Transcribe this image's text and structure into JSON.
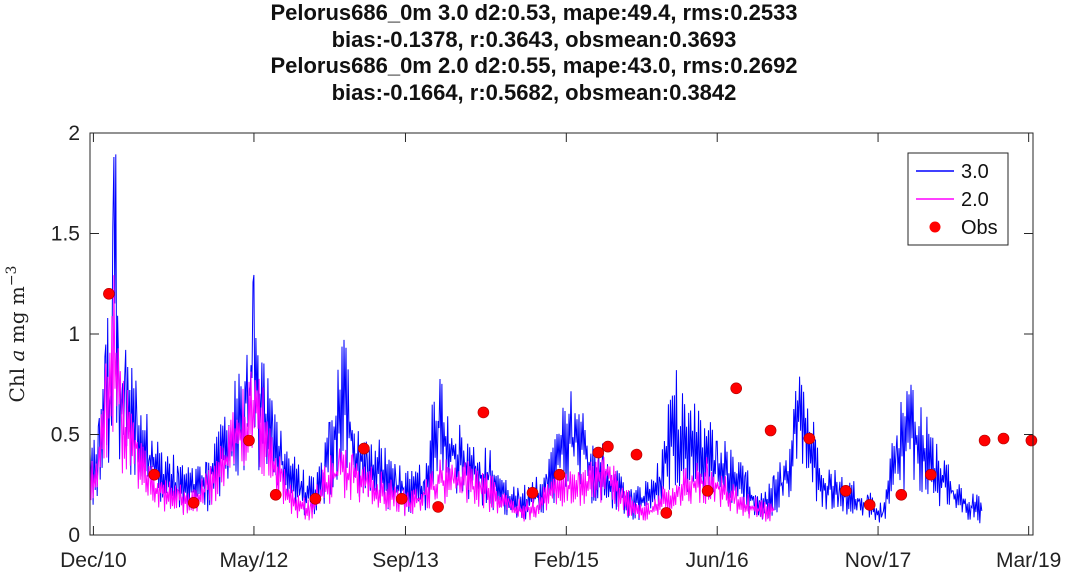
{
  "chart_data": {
    "type": "line",
    "title_lines": [
      "Pelorus686_0m  3.0 d2:0.53, mape:49.4, rms:0.2533",
      "bias:-0.1378, r:0.3643, obsmean:0.3693",
      "Pelorus686_0m 2.0 d2:0.55, mape:43.0, rms:0.2692",
      "bias:-0.1664, r:0.5682, obsmean:0.3842"
    ],
    "ylabel": "Chl a mg m-3",
    "ylabel_parts": {
      "prefix": "Chl",
      "italic": "a",
      "unit": "mg m",
      "exponent": "−3"
    },
    "ylim": [
      0,
      2
    ],
    "xlim": [
      "2010-11-20",
      "2019-03-15"
    ],
    "y_ticks": [
      {
        "value": 0,
        "label": "0"
      },
      {
        "value": 0.5,
        "label": "0.5"
      },
      {
        "value": 1,
        "label": "1"
      },
      {
        "value": 1.5,
        "label": "1.5"
      },
      {
        "value": 2,
        "label": "2"
      }
    ],
    "x_ticks": [
      {
        "date": "2010-12-01",
        "label": "Dec/10"
      },
      {
        "date": "2012-05-01",
        "label": "May/12"
      },
      {
        "date": "2013-09-01",
        "label": "Sep/13"
      },
      {
        "date": "2015-02-01",
        "label": "Feb/15"
      },
      {
        "date": "2016-06-01",
        "label": "Jun/16"
      },
      {
        "date": "2017-11-01",
        "label": "Nov/17"
      },
      {
        "date": "2019-03-01",
        "label": "Mar/19"
      }
    ],
    "grid": false,
    "legend_position": "top-right",
    "series": [
      {
        "name": "3.0",
        "style": "line",
        "color": "#0000ff",
        "points": [
          [
            "2010-11-20",
            0.3
          ],
          [
            "2010-12-20",
            0.4
          ],
          [
            "2011-01-10",
            0.85
          ],
          [
            "2011-01-25",
            0.55
          ],
          [
            "2011-02-05",
            1.63
          ],
          [
            "2011-02-20",
            0.7
          ],
          [
            "2011-03-15",
            0.6
          ],
          [
            "2011-04-20",
            0.55
          ],
          [
            "2011-06-01",
            0.35
          ],
          [
            "2011-07-15",
            0.3
          ],
          [
            "2011-09-01",
            0.25
          ],
          [
            "2011-10-15",
            0.22
          ],
          [
            "2011-12-01",
            0.25
          ],
          [
            "2012-01-15",
            0.4
          ],
          [
            "2012-03-01",
            0.5
          ],
          [
            "2012-04-15",
            0.7
          ],
          [
            "2012-05-01",
            0.93
          ],
          [
            "2012-05-20",
            0.6
          ],
          [
            "2012-07-01",
            0.45
          ],
          [
            "2012-08-15",
            0.3
          ],
          [
            "2012-10-01",
            0.22
          ],
          [
            "2012-11-15",
            0.18
          ],
          [
            "2013-01-01",
            0.4
          ],
          [
            "2013-02-15",
            0.7
          ],
          [
            "2013-03-20",
            0.4
          ],
          [
            "2013-05-01",
            0.35
          ],
          [
            "2013-06-15",
            0.3
          ],
          [
            "2013-08-01",
            0.25
          ],
          [
            "2013-09-15",
            0.2
          ],
          [
            "2013-11-01",
            0.25
          ],
          [
            "2013-12-15",
            0.55
          ],
          [
            "2014-01-15",
            0.45
          ],
          [
            "2014-03-01",
            0.35
          ],
          [
            "2014-04-15",
            0.3
          ],
          [
            "2014-06-01",
            0.28
          ],
          [
            "2014-07-15",
            0.2
          ],
          [
            "2014-09-01",
            0.15
          ],
          [
            "2014-10-15",
            0.18
          ],
          [
            "2014-12-01",
            0.25
          ],
          [
            "2015-01-15",
            0.4
          ],
          [
            "2015-03-01",
            0.5
          ],
          [
            "2015-04-15",
            0.35
          ],
          [
            "2015-06-01",
            0.3
          ],
          [
            "2015-07-15",
            0.22
          ],
          [
            "2015-09-01",
            0.15
          ],
          [
            "2015-10-15",
            0.18
          ],
          [
            "2015-12-01",
            0.25
          ],
          [
            "2016-01-15",
            0.55
          ],
          [
            "2016-03-01",
            0.45
          ],
          [
            "2016-04-15",
            0.4
          ],
          [
            "2016-06-01",
            0.35
          ],
          [
            "2016-07-15",
            0.28
          ],
          [
            "2016-09-01",
            0.22
          ],
          [
            "2016-10-15",
            0.15
          ],
          [
            "2016-12-01",
            0.2
          ],
          [
            "2017-01-15",
            0.3
          ],
          [
            "2017-02-15",
            0.66
          ],
          [
            "2017-04-01",
            0.4
          ],
          [
            "2017-05-15",
            0.25
          ],
          [
            "2017-07-01",
            0.2
          ],
          [
            "2017-08-15",
            0.18
          ],
          [
            "2017-10-01",
            0.15
          ],
          [
            "2017-11-15",
            0.1
          ],
          [
            "2018-01-01",
            0.4
          ],
          [
            "2018-02-15",
            0.55
          ],
          [
            "2018-04-01",
            0.4
          ],
          [
            "2018-05-15",
            0.3
          ],
          [
            "2018-07-01",
            0.2
          ],
          [
            "2018-08-15",
            0.15
          ],
          [
            "2018-10-01",
            0.12
          ]
        ]
      },
      {
        "name": "2.0",
        "style": "line",
        "color": "#ff00ff",
        "points": [
          [
            "2010-11-20",
            0.25
          ],
          [
            "2010-12-20",
            0.35
          ],
          [
            "2011-01-10",
            0.6
          ],
          [
            "2011-02-05",
            0.95
          ],
          [
            "2011-03-01",
            0.55
          ],
          [
            "2011-04-15",
            0.45
          ],
          [
            "2011-06-01",
            0.25
          ],
          [
            "2011-07-15",
            0.2
          ],
          [
            "2011-09-01",
            0.18
          ],
          [
            "2011-10-15",
            0.16
          ],
          [
            "2011-12-01",
            0.22
          ],
          [
            "2012-01-15",
            0.32
          ],
          [
            "2012-03-01",
            0.45
          ],
          [
            "2012-04-15",
            0.55
          ],
          [
            "2012-05-05",
            0.7
          ],
          [
            "2012-06-15",
            0.4
          ],
          [
            "2012-08-01",
            0.25
          ],
          [
            "2012-09-15",
            0.15
          ],
          [
            "2012-11-01",
            0.12
          ],
          [
            "2012-12-15",
            0.25
          ],
          [
            "2013-02-01",
            0.32
          ],
          [
            "2013-03-15",
            0.3
          ],
          [
            "2013-05-01",
            0.25
          ],
          [
            "2013-06-15",
            0.22
          ],
          [
            "2013-08-01",
            0.18
          ],
          [
            "2013-09-15",
            0.15
          ],
          [
            "2013-11-01",
            0.2
          ],
          [
            "2013-12-15",
            0.26
          ],
          [
            "2014-02-01",
            0.28
          ],
          [
            "2014-03-15",
            0.26
          ],
          [
            "2014-05-01",
            0.22
          ],
          [
            "2014-06-15",
            0.2
          ],
          [
            "2014-08-01",
            0.14
          ],
          [
            "2014-09-15",
            0.12
          ],
          [
            "2014-11-01",
            0.14
          ],
          [
            "2014-12-15",
            0.2
          ],
          [
            "2015-02-01",
            0.25
          ],
          [
            "2015-03-15",
            0.22
          ],
          [
            "2015-05-01",
            0.26
          ],
          [
            "2015-06-15",
            0.3
          ],
          [
            "2015-08-01",
            0.18
          ],
          [
            "2015-09-15",
            0.12
          ],
          [
            "2015-11-01",
            0.12
          ],
          [
            "2015-12-15",
            0.18
          ],
          [
            "2016-02-01",
            0.22
          ],
          [
            "2016-03-15",
            0.25
          ],
          [
            "2016-05-01",
            0.28
          ],
          [
            "2016-06-15",
            0.22
          ],
          [
            "2016-08-01",
            0.18
          ],
          [
            "2016-09-15",
            0.14
          ],
          [
            "2016-11-01",
            0.12
          ],
          [
            "2016-12-01",
            0.12
          ]
        ]
      },
      {
        "name": "Obs",
        "style": "markers",
        "color": "#ff0000",
        "points": [
          [
            "2011-01-20",
            1.2
          ],
          [
            "2011-06-15",
            0.3
          ],
          [
            "2011-10-20",
            0.16
          ],
          [
            "2012-04-15",
            0.47
          ],
          [
            "2012-07-10",
            0.2
          ],
          [
            "2012-11-15",
            0.18
          ],
          [
            "2013-04-20",
            0.43
          ],
          [
            "2013-08-20",
            0.18
          ],
          [
            "2013-12-15",
            0.14
          ],
          [
            "2014-05-10",
            0.61
          ],
          [
            "2014-10-15",
            0.21
          ],
          [
            "2015-01-10",
            0.3
          ],
          [
            "2015-05-15",
            0.41
          ],
          [
            "2015-06-15",
            0.44
          ],
          [
            "2015-09-15",
            0.4
          ],
          [
            "2015-12-20",
            0.11
          ],
          [
            "2016-05-01",
            0.22
          ],
          [
            "2016-08-01",
            0.73
          ],
          [
            "2016-11-20",
            0.52
          ],
          [
            "2017-03-25",
            0.48
          ],
          [
            "2017-07-20",
            0.22
          ],
          [
            "2017-10-05",
            0.15
          ],
          [
            "2018-01-15",
            0.2
          ],
          [
            "2018-04-20",
            0.3
          ],
          [
            "2018-10-10",
            0.47
          ],
          [
            "2018-12-10",
            0.48
          ],
          [
            "2019-03-10",
            0.47
          ]
        ]
      }
    ]
  }
}
